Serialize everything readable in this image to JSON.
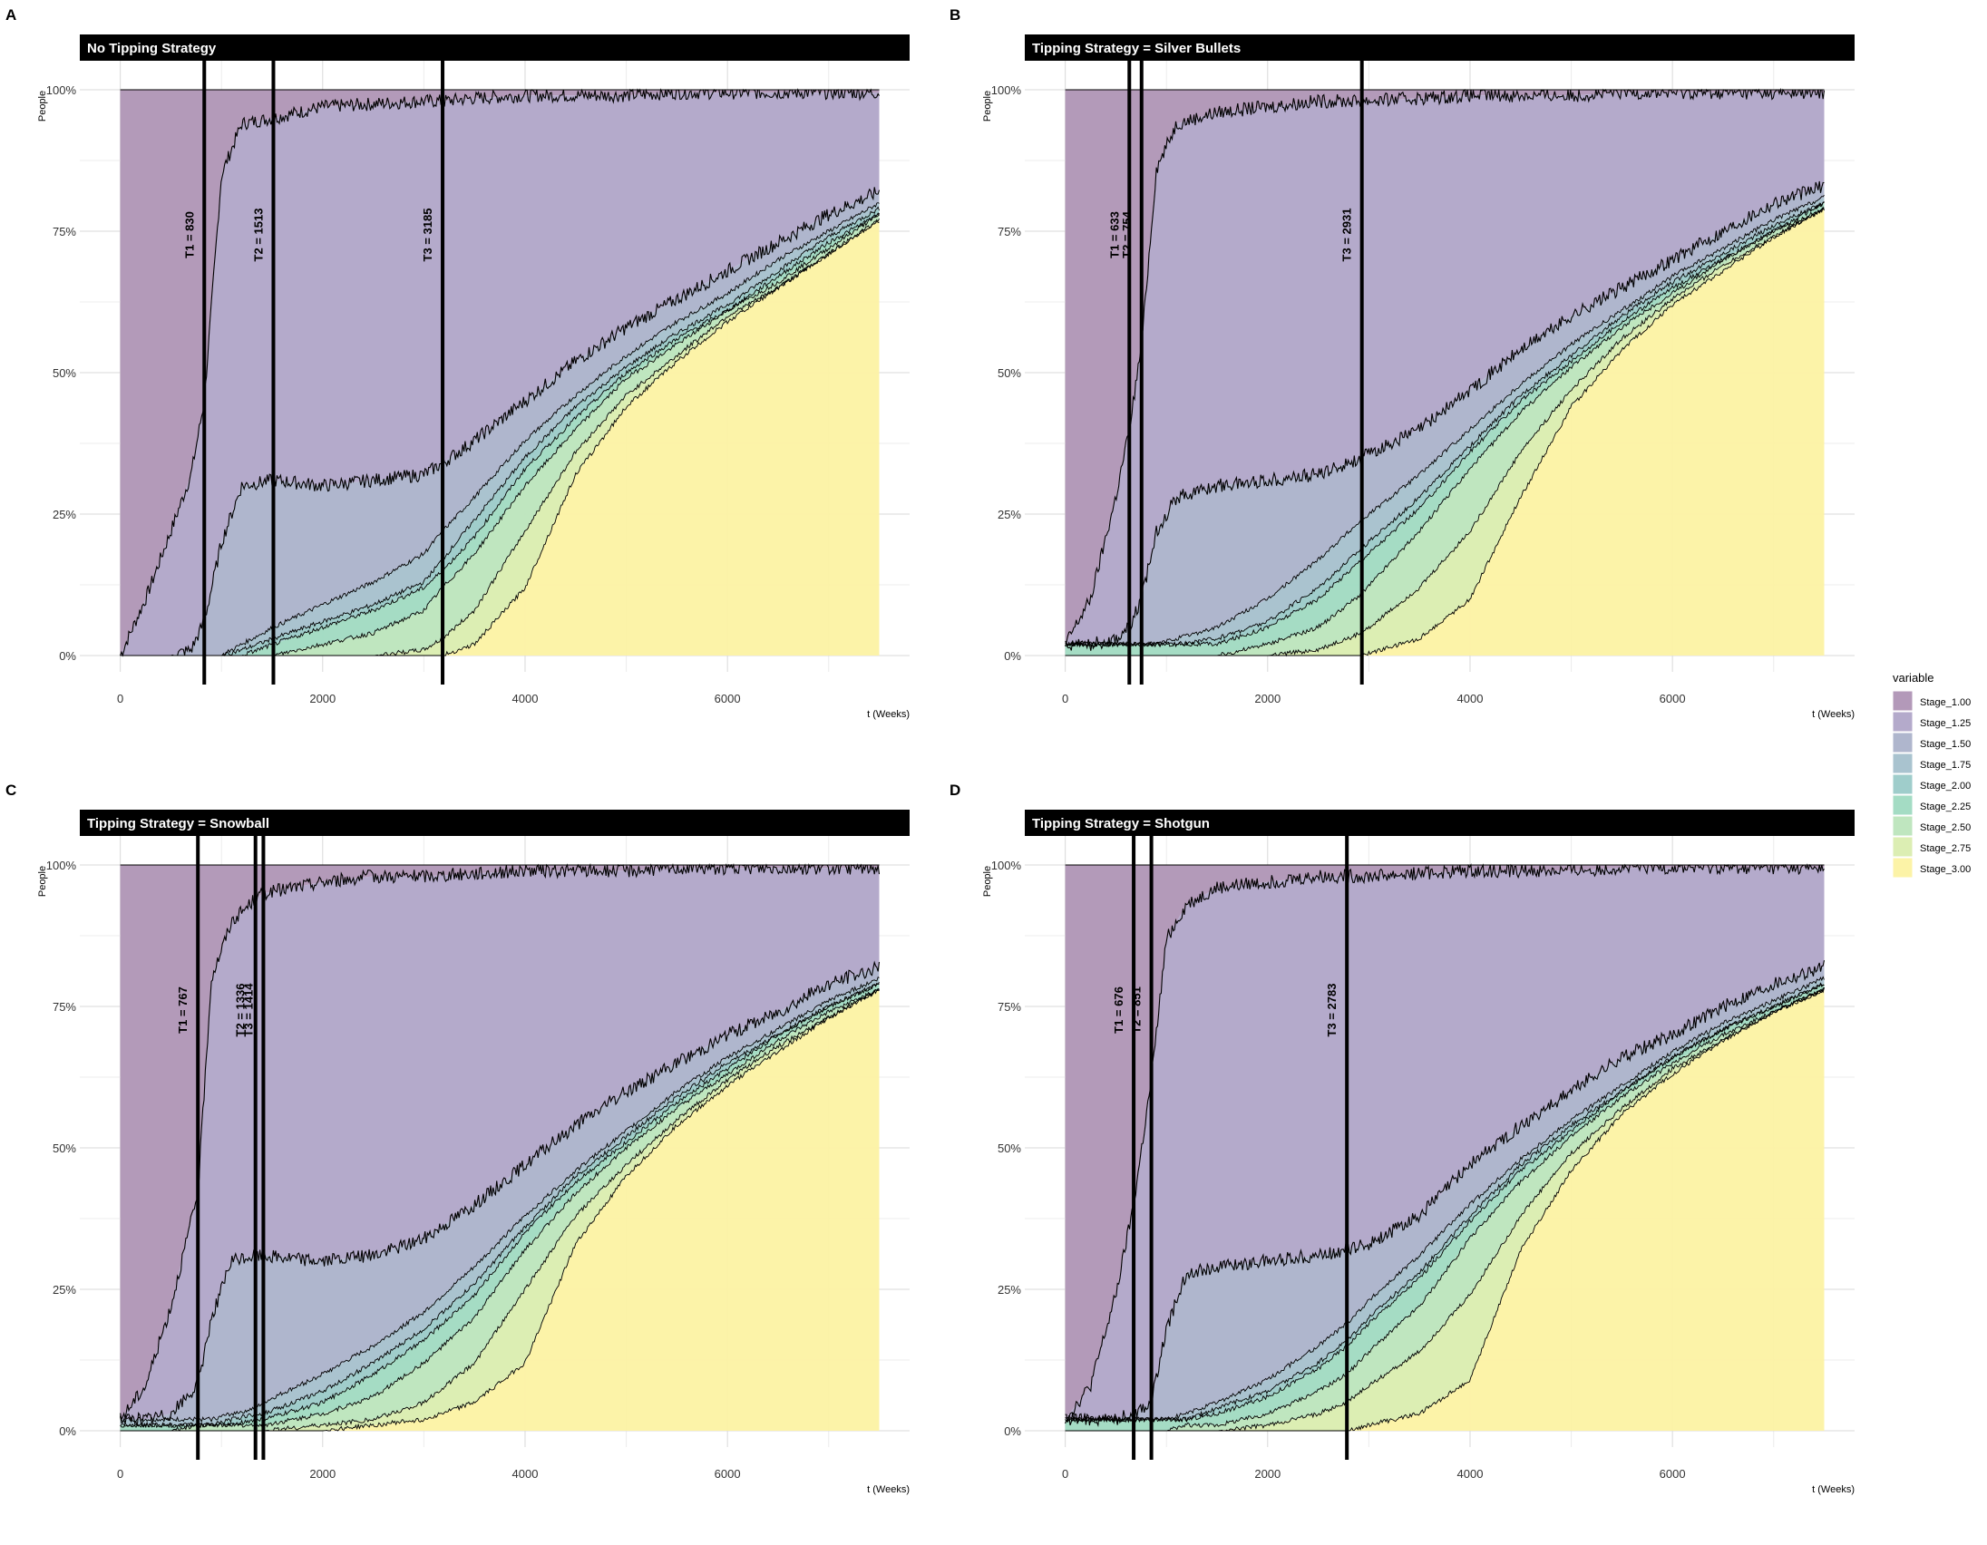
{
  "legend": {
    "title": "variable",
    "items": [
      {
        "label": "Stage_1.00",
        "color": "#B399B9"
      },
      {
        "label": "Stage_1.25",
        "color": "#B4AACB"
      },
      {
        "label": "Stage_1.50",
        "color": "#AFB6CD"
      },
      {
        "label": "Stage_1.75",
        "color": "#A9C3CF"
      },
      {
        "label": "Stage_2.00",
        "color": "#9FCDCB"
      },
      {
        "label": "Stage_2.25",
        "color": "#A4DCC4"
      },
      {
        "label": "Stage_2.50",
        "color": "#BFE6BF"
      },
      {
        "label": "Stage_2.75",
        "color": "#DCEEB3"
      },
      {
        "label": "Stage_3.00",
        "color": "#FCF3A7"
      }
    ]
  },
  "chart_data": [
    {
      "type": "area",
      "panel": "A",
      "title": "No Tipping Strategy",
      "xlabel": "t (Weeks)",
      "ylabel": "People",
      "xlim": [
        -400,
        7800
      ],
      "ylim": [
        0,
        1
      ],
      "x_ticks": [
        0,
        2000,
        4000,
        6000
      ],
      "x_tick_labels": [
        "0",
        "2000",
        "4000",
        "6000"
      ],
      "y_ticks": [
        0,
        0.25,
        0.5,
        0.75,
        1
      ],
      "y_tick_labels": [
        "0%",
        "25%",
        "50%",
        "75%",
        "100%"
      ],
      "grid": true,
      "x": [
        0,
        250,
        500,
        700,
        830,
        1000,
        1200,
        1513,
        2000,
        2500,
        3000,
        3185,
        3500,
        4000,
        4500,
        5000,
        5500,
        6000,
        6500,
        7000,
        7500
      ],
      "boundaries": [
        [
          0,
          0.1,
          0.22,
          0.32,
          0.45,
          0.85,
          0.94,
          0.95,
          0.97,
          0.975,
          0.98,
          0.98,
          0.985,
          0.99,
          0.99,
          0.99,
          0.995,
          0.995,
          0.995,
          0.995,
          0.995
        ],
        [
          0,
          0,
          0,
          0.01,
          0.06,
          0.2,
          0.3,
          0.31,
          0.3,
          0.31,
          0.32,
          0.34,
          0.38,
          0.45,
          0.52,
          0.58,
          0.63,
          0.68,
          0.73,
          0.78,
          0.82
        ],
        [
          0,
          0,
          0,
          0,
          0,
          0,
          0.02,
          0.05,
          0.09,
          0.13,
          0.18,
          0.22,
          0.28,
          0.38,
          0.46,
          0.53,
          0.59,
          0.64,
          0.7,
          0.75,
          0.8
        ],
        [
          0,
          0,
          0,
          0,
          0,
          0,
          0.01,
          0.03,
          0.06,
          0.09,
          0.13,
          0.17,
          0.24,
          0.35,
          0.44,
          0.51,
          0.57,
          0.62,
          0.68,
          0.74,
          0.79
        ],
        [
          0,
          0,
          0,
          0,
          0,
          0,
          0,
          0.02,
          0.05,
          0.08,
          0.12,
          0.15,
          0.21,
          0.33,
          0.42,
          0.5,
          0.56,
          0.61,
          0.67,
          0.73,
          0.78
        ],
        [
          0,
          0,
          0,
          0,
          0,
          0,
          0,
          0,
          0.02,
          0.04,
          0.08,
          0.12,
          0.18,
          0.3,
          0.4,
          0.49,
          0.55,
          0.61,
          0.66,
          0.72,
          0.78
        ],
        [
          0,
          0,
          0,
          0,
          0,
          0,
          0,
          0,
          0,
          0,
          0.01,
          0.03,
          0.08,
          0.22,
          0.36,
          0.46,
          0.53,
          0.6,
          0.65,
          0.71,
          0.77
        ],
        [
          0,
          0,
          0,
          0,
          0,
          0,
          0,
          0,
          0,
          0,
          0,
          0,
          0.02,
          0.12,
          0.32,
          0.44,
          0.52,
          0.59,
          0.65,
          0.71,
          0.77
        ]
      ],
      "tipping_points": [
        {
          "label": "T1 = 830",
          "t": 830
        },
        {
          "label": "T2 = 1513",
          "t": 1513
        },
        {
          "label": "T3 = 3185",
          "t": 3185
        }
      ]
    },
    {
      "type": "area",
      "panel": "B",
      "title": "Tipping Strategy = Silver Bullets",
      "xlabel": "t (Weeks)",
      "ylabel": "People",
      "xlim": [
        -400,
        7800
      ],
      "ylim": [
        0,
        1
      ],
      "x_ticks": [
        0,
        2000,
        4000,
        6000
      ],
      "x_tick_labels": [
        "0",
        "2000",
        "4000",
        "6000"
      ],
      "y_ticks": [
        0,
        0.25,
        0.5,
        0.75,
        1
      ],
      "y_tick_labels": [
        "0%",
        "25%",
        "50%",
        "75%",
        "100%"
      ],
      "grid": true,
      "x": [
        0,
        250,
        500,
        633,
        754,
        900,
        1100,
        1500,
        2000,
        2500,
        2931,
        3500,
        4000,
        4500,
        5000,
        5500,
        6000,
        6500,
        7000,
        7500
      ],
      "boundaries": [
        [
          0.02,
          0.1,
          0.28,
          0.4,
          0.55,
          0.86,
          0.94,
          0.96,
          0.97,
          0.98,
          0.98,
          0.985,
          0.99,
          0.99,
          0.99,
          0.995,
          0.995,
          0.995,
          0.995,
          0.995
        ],
        [
          0.02,
          0.02,
          0.03,
          0.05,
          0.1,
          0.22,
          0.28,
          0.3,
          0.31,
          0.32,
          0.35,
          0.4,
          0.47,
          0.54,
          0.6,
          0.65,
          0.7,
          0.75,
          0.8,
          0.83
        ],
        [
          0.02,
          0.02,
          0.02,
          0.02,
          0.02,
          0.02,
          0.03,
          0.05,
          0.1,
          0.17,
          0.24,
          0.32,
          0.4,
          0.48,
          0.55,
          0.61,
          0.67,
          0.72,
          0.77,
          0.81
        ],
        [
          0.02,
          0.02,
          0.02,
          0.02,
          0.02,
          0.02,
          0.02,
          0.03,
          0.06,
          0.12,
          0.19,
          0.28,
          0.37,
          0.46,
          0.53,
          0.6,
          0.66,
          0.71,
          0.76,
          0.8
        ],
        [
          0.02,
          0.02,
          0.02,
          0.02,
          0.02,
          0.02,
          0.02,
          0.02,
          0.05,
          0.1,
          0.17,
          0.26,
          0.36,
          0.45,
          0.52,
          0.59,
          0.65,
          0.7,
          0.75,
          0.8
        ],
        [
          0,
          0,
          0,
          0,
          0,
          0,
          0,
          0,
          0.02,
          0.05,
          0.11,
          0.22,
          0.33,
          0.43,
          0.51,
          0.58,
          0.64,
          0.7,
          0.75,
          0.79
        ],
        [
          0,
          0,
          0,
          0,
          0,
          0,
          0,
          0,
          0,
          0.01,
          0.04,
          0.12,
          0.22,
          0.36,
          0.47,
          0.56,
          0.63,
          0.69,
          0.74,
          0.79
        ],
        [
          0,
          0,
          0,
          0,
          0,
          0,
          0,
          0,
          0,
          0,
          0,
          0.03,
          0.1,
          0.28,
          0.44,
          0.54,
          0.62,
          0.68,
          0.74,
          0.79
        ]
      ],
      "tipping_points": [
        {
          "label": "T1 = 633",
          "t": 633
        },
        {
          "label": "T2 = 754",
          "t": 754
        },
        {
          "label": "T3 = 2931",
          "t": 2931
        }
      ]
    },
    {
      "type": "area",
      "panel": "C",
      "title": "Tipping Strategy = Snowball",
      "xlabel": "t (Weeks)",
      "ylabel": "People",
      "xlim": [
        -400,
        7800
      ],
      "ylim": [
        0,
        1
      ],
      "x_ticks": [
        0,
        2000,
        4000,
        6000
      ],
      "x_tick_labels": [
        "0",
        "2000",
        "4000",
        "6000"
      ],
      "y_ticks": [
        0,
        0.25,
        0.5,
        0.75,
        1
      ],
      "y_tick_labels": [
        "0%",
        "25%",
        "50%",
        "75%",
        "100%"
      ],
      "grid": true,
      "x": [
        0,
        250,
        500,
        767,
        900,
        1100,
        1336,
        1414,
        2000,
        2500,
        3000,
        3500,
        4000,
        4500,
        5000,
        5500,
        6000,
        6500,
        7000,
        7500
      ],
      "boundaries": [
        [
          0.02,
          0.08,
          0.22,
          0.42,
          0.8,
          0.9,
          0.94,
          0.95,
          0.97,
          0.98,
          0.98,
          0.985,
          0.99,
          0.99,
          0.99,
          0.995,
          0.995,
          0.995,
          0.995,
          0.995
        ],
        [
          0.02,
          0.02,
          0.03,
          0.08,
          0.2,
          0.3,
          0.31,
          0.31,
          0.3,
          0.31,
          0.34,
          0.4,
          0.47,
          0.54,
          0.6,
          0.65,
          0.7,
          0.74,
          0.79,
          0.82
        ],
        [
          0.02,
          0.02,
          0.02,
          0.02,
          0.02,
          0.03,
          0.04,
          0.05,
          0.1,
          0.15,
          0.21,
          0.29,
          0.38,
          0.46,
          0.53,
          0.6,
          0.66,
          0.71,
          0.76,
          0.8
        ],
        [
          0.01,
          0.01,
          0.01,
          0.01,
          0.01,
          0.02,
          0.03,
          0.03,
          0.07,
          0.12,
          0.18,
          0.26,
          0.36,
          0.45,
          0.52,
          0.59,
          0.65,
          0.7,
          0.75,
          0.79
        ],
        [
          0.01,
          0.01,
          0.01,
          0.01,
          0.01,
          0.01,
          0.02,
          0.02,
          0.05,
          0.1,
          0.16,
          0.24,
          0.35,
          0.44,
          0.51,
          0.58,
          0.64,
          0.7,
          0.75,
          0.79
        ],
        [
          0,
          0,
          0,
          0.01,
          0.01,
          0.01,
          0.01,
          0.01,
          0.03,
          0.06,
          0.12,
          0.2,
          0.32,
          0.42,
          0.5,
          0.57,
          0.63,
          0.69,
          0.74,
          0.78
        ],
        [
          0,
          0,
          0,
          0,
          0,
          0,
          0,
          0,
          0.01,
          0.02,
          0.05,
          0.12,
          0.25,
          0.38,
          0.47,
          0.55,
          0.62,
          0.68,
          0.73,
          0.78
        ],
        [
          0,
          0,
          0,
          0,
          0,
          0,
          0,
          0,
          0,
          0.01,
          0.02,
          0.05,
          0.12,
          0.33,
          0.45,
          0.54,
          0.61,
          0.67,
          0.73,
          0.78
        ]
      ],
      "tipping_points": [
        {
          "label": "T1 = 767",
          "t": 767
        },
        {
          "label": "T2 = 1336",
          "t": 1336
        },
        {
          "label": "T3 = 1414",
          "t": 1414
        }
      ]
    },
    {
      "type": "area",
      "panel": "D",
      "title": "Tipping Strategy = Shotgun",
      "xlabel": "t (Weeks)",
      "ylabel": "People",
      "xlim": [
        -400,
        7800
      ],
      "ylim": [
        0,
        1
      ],
      "x_ticks": [
        0,
        2000,
        4000,
        6000
      ],
      "x_tick_labels": [
        "0",
        "2000",
        "4000",
        "6000"
      ],
      "y_ticks": [
        0,
        0.25,
        0.5,
        0.75,
        1
      ],
      "y_tick_labels": [
        "0%",
        "25%",
        "50%",
        "75%",
        "100%"
      ],
      "grid": true,
      "x": [
        0,
        250,
        500,
        676,
        851,
        1000,
        1200,
        1500,
        2000,
        2500,
        2783,
        3000,
        3500,
        4000,
        4500,
        5000,
        5500,
        6000,
        6500,
        7000,
        7500
      ],
      "boundaries": [
        [
          0.02,
          0.08,
          0.24,
          0.4,
          0.62,
          0.87,
          0.93,
          0.96,
          0.97,
          0.98,
          0.98,
          0.98,
          0.985,
          0.99,
          0.99,
          0.99,
          0.995,
          0.995,
          0.995,
          0.995,
          0.995
        ],
        [
          0.02,
          0.02,
          0.02,
          0.03,
          0.05,
          0.18,
          0.28,
          0.29,
          0.3,
          0.31,
          0.32,
          0.33,
          0.38,
          0.47,
          0.54,
          0.6,
          0.66,
          0.7,
          0.75,
          0.79,
          0.82
        ],
        [
          0.02,
          0.02,
          0.02,
          0.02,
          0.02,
          0.02,
          0.03,
          0.05,
          0.09,
          0.15,
          0.19,
          0.23,
          0.31,
          0.4,
          0.48,
          0.55,
          0.61,
          0.67,
          0.72,
          0.76,
          0.8
        ],
        [
          0.02,
          0.02,
          0.02,
          0.02,
          0.02,
          0.02,
          0.02,
          0.04,
          0.07,
          0.12,
          0.16,
          0.2,
          0.28,
          0.38,
          0.47,
          0.54,
          0.6,
          0.66,
          0.71,
          0.75,
          0.79
        ],
        [
          0.02,
          0.02,
          0.02,
          0.02,
          0.02,
          0.02,
          0.02,
          0.03,
          0.06,
          0.11,
          0.15,
          0.19,
          0.27,
          0.37,
          0.46,
          0.53,
          0.6,
          0.66,
          0.71,
          0.75,
          0.79
        ],
        [
          0,
          0,
          0,
          0,
          0,
          0,
          0.01,
          0.01,
          0.03,
          0.07,
          0.1,
          0.14,
          0.22,
          0.34,
          0.44,
          0.52,
          0.59,
          0.65,
          0.7,
          0.74,
          0.78
        ],
        [
          0,
          0,
          0,
          0,
          0,
          0,
          0,
          0,
          0.01,
          0.03,
          0.05,
          0.08,
          0.14,
          0.24,
          0.38,
          0.49,
          0.57,
          0.64,
          0.69,
          0.74,
          0.78
        ],
        [
          0,
          0,
          0,
          0,
          0,
          0,
          0,
          0,
          0,
          0,
          0,
          0.01,
          0.03,
          0.09,
          0.32,
          0.46,
          0.56,
          0.63,
          0.69,
          0.74,
          0.78
        ]
      ],
      "tipping_points": [
        {
          "label": "T1 = 676",
          "t": 676
        },
        {
          "label": "T2 = 851",
          "t": 851
        },
        {
          "label": "T3 = 2783",
          "t": 2783
        }
      ]
    }
  ]
}
